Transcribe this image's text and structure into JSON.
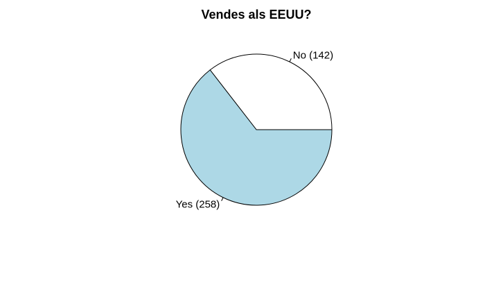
{
  "chart_data": {
    "type": "pie",
    "title": "Vendes als EEUU?",
    "labels": [
      "No (142)",
      "Yes (258)"
    ],
    "values": [
      142,
      258
    ],
    "colors": [
      "#ffffff",
      "#add8e6"
    ],
    "border_color": "#000000",
    "start_angle_deg": 0,
    "direction": "counterclockwise"
  }
}
